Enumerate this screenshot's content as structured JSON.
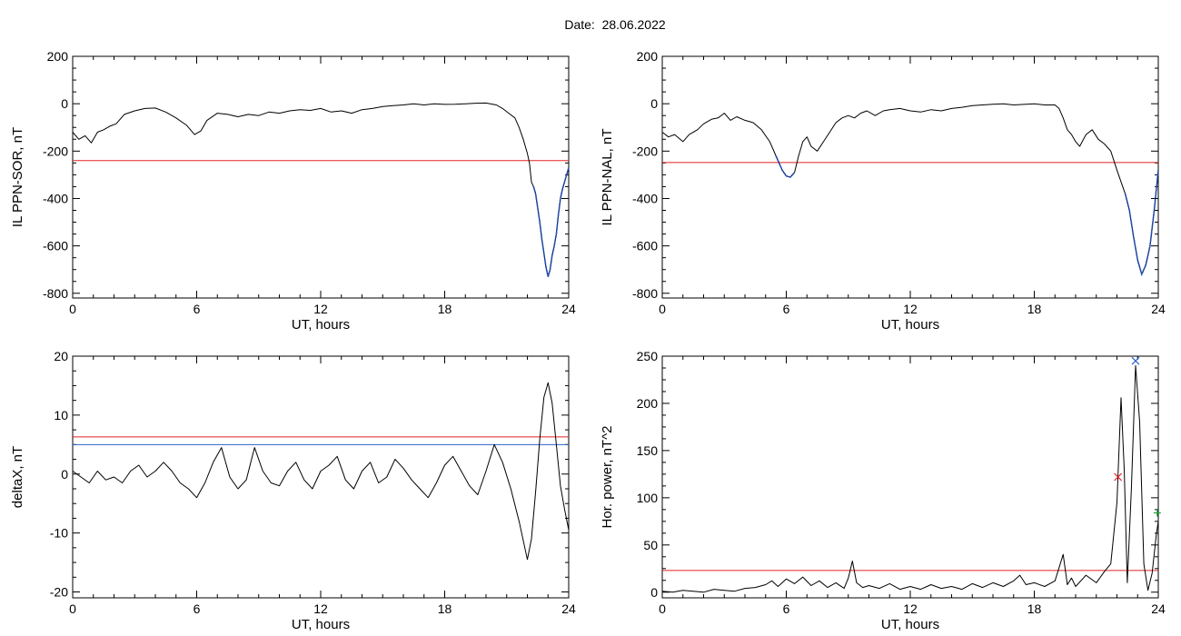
{
  "page": {
    "date_label": "Date:",
    "date_value": "28.06.2022"
  },
  "chart_data": [
    {
      "type": "line",
      "panel": "top-left",
      "ylabel": "IL PPN-SOR, nT",
      "xlabel": "UT, hours",
      "xlim": [
        0,
        24
      ],
      "ylim": [
        -820,
        200
      ],
      "xticks": [
        0,
        6,
        12,
        18,
        24
      ],
      "yticks": [
        200,
        0,
        -200,
        -400,
        -600,
        -800
      ],
      "threshold": {
        "value": -240,
        "color": "#e02020"
      },
      "line_color": "#000000",
      "highlight_color": "#1f4fbf",
      "highlight_ranges": [
        [
          22.3,
          24
        ]
      ],
      "series": [
        {
          "x": [
            0,
            0.3,
            0.6,
            0.9,
            1.2,
            1.5,
            1.8,
            2.1,
            2.5,
            3.0,
            3.5,
            4.0,
            4.5,
            5.0,
            5.5,
            5.9,
            6.2,
            6.5,
            7.0,
            7.5,
            8.0,
            8.5,
            9.0,
            9.5,
            10.0,
            10.5,
            11.0,
            11.5,
            12.0,
            12.5,
            13.0,
            13.5,
            14.0,
            14.5,
            15.0,
            15.5,
            16.0,
            16.5,
            17.0,
            17.5,
            18.0,
            18.5,
            19.0,
            19.5,
            20.0,
            20.5,
            20.8,
            21.1,
            21.4,
            21.6,
            21.8,
            22.0,
            22.1,
            22.2,
            22.3,
            22.4,
            22.5,
            22.6,
            22.7,
            22.8,
            22.9,
            23.0,
            23.1,
            23.2,
            23.3,
            23.4,
            23.5,
            23.6,
            23.7,
            23.8,
            23.9,
            24.0
          ],
          "y": [
            -120,
            -150,
            -135,
            -165,
            -120,
            -110,
            -95,
            -85,
            -45,
            -30,
            -20,
            -18,
            -35,
            -60,
            -90,
            -130,
            -115,
            -70,
            -40,
            -45,
            -55,
            -45,
            -50,
            -35,
            -40,
            -30,
            -25,
            -28,
            -20,
            -35,
            -30,
            -40,
            -25,
            -20,
            -12,
            -8,
            -5,
            0,
            -5,
            0,
            -3,
            -2,
            0,
            2,
            3,
            -5,
            -20,
            -40,
            -60,
            -100,
            -150,
            -210,
            -250,
            -330,
            -350,
            -380,
            -440,
            -500,
            -570,
            -630,
            -690,
            -730,
            -700,
            -640,
            -600,
            -550,
            -470,
            -400,
            -360,
            -330,
            -300,
            -270
          ]
        }
      ]
    },
    {
      "type": "line",
      "panel": "top-right",
      "ylabel": "IL PPN-NAL, nT",
      "xlabel": "UT, hours",
      "xlim": [
        0,
        24
      ],
      "ylim": [
        -820,
        200
      ],
      "xticks": [
        0,
        6,
        12,
        18,
        24
      ],
      "yticks": [
        200,
        0,
        -200,
        -400,
        -600,
        -800
      ],
      "threshold": {
        "value": -248,
        "color": "#e02020"
      },
      "line_color": "#000000",
      "highlight_color": "#1f4fbf",
      "highlight_ranges": [
        [
          5.5,
          6.4
        ],
        [
          22.3,
          24
        ]
      ],
      "series": [
        {
          "x": [
            0,
            0.3,
            0.6,
            1.0,
            1.3,
            1.7,
            2.0,
            2.4,
            2.7,
            3.0,
            3.3,
            3.6,
            4.0,
            4.4,
            4.8,
            5.2,
            5.5,
            5.8,
            6.0,
            6.2,
            6.4,
            6.6,
            6.8,
            7.0,
            7.2,
            7.5,
            7.8,
            8.1,
            8.4,
            8.7,
            9.0,
            9.3,
            9.6,
            9.9,
            10.3,
            10.7,
            11.0,
            11.5,
            12.0,
            12.5,
            13.0,
            13.5,
            14.0,
            14.5,
            15.0,
            15.5,
            16.0,
            16.5,
            17.0,
            17.5,
            18.0,
            18.5,
            19.0,
            19.2,
            19.4,
            19.6,
            19.8,
            20.0,
            20.2,
            20.5,
            20.8,
            21.1,
            21.4,
            21.7,
            22.0,
            22.2,
            22.4,
            22.6,
            22.8,
            23.0,
            23.2,
            23.4,
            23.6,
            23.8,
            24.0
          ],
          "y": [
            -120,
            -140,
            -130,
            -160,
            -130,
            -110,
            -85,
            -65,
            -60,
            -40,
            -70,
            -55,
            -70,
            -80,
            -110,
            -160,
            -220,
            -280,
            -305,
            -310,
            -290,
            -220,
            -160,
            -140,
            -180,
            -200,
            -160,
            -120,
            -80,
            -60,
            -50,
            -60,
            -40,
            -30,
            -50,
            -30,
            -25,
            -20,
            -30,
            -35,
            -25,
            -30,
            -20,
            -15,
            -8,
            -5,
            -2,
            0,
            -5,
            -3,
            0,
            -5,
            -5,
            -20,
            -60,
            -110,
            -130,
            -160,
            -180,
            -130,
            -110,
            -150,
            -170,
            -200,
            -280,
            -330,
            -380,
            -450,
            -560,
            -660,
            -720,
            -680,
            -600,
            -450,
            -280
          ]
        }
      ]
    },
    {
      "type": "line",
      "panel": "bottom-left",
      "ylabel": "deltaX, nT",
      "xlabel": "UT, hours",
      "xlim": [
        0,
        24
      ],
      "ylim": [
        -21,
        20
      ],
      "xticks": [
        0,
        6,
        12,
        18,
        24
      ],
      "yticks": [
        20,
        10,
        0,
        -10,
        -20
      ],
      "thresholds": [
        {
          "value": 6.3,
          "color": "#e02020"
        },
        {
          "value": 5.0,
          "color": "#2a62c9"
        }
      ],
      "line_color": "#000000",
      "series": [
        {
          "x": [
            0,
            0.4,
            0.8,
            1.2,
            1.6,
            2.0,
            2.4,
            2.8,
            3.2,
            3.6,
            4.0,
            4.4,
            4.8,
            5.2,
            5.6,
            6.0,
            6.4,
            6.8,
            7.2,
            7.6,
            8.0,
            8.4,
            8.8,
            9.2,
            9.6,
            10.0,
            10.4,
            10.8,
            11.2,
            11.6,
            12.0,
            12.4,
            12.8,
            13.2,
            13.6,
            14.0,
            14.4,
            14.8,
            15.2,
            15.6,
            16.0,
            16.4,
            16.8,
            17.2,
            17.6,
            18.0,
            18.4,
            18.8,
            19.2,
            19.6,
            20.0,
            20.4,
            20.8,
            21.2,
            21.6,
            22.0,
            22.2,
            22.4,
            22.6,
            22.8,
            23.0,
            23.2,
            23.4,
            23.6,
            23.8,
            24.0
          ],
          "y": [
            0.5,
            -0.5,
            -1.5,
            0.5,
            -1,
            -0.5,
            -1.5,
            0.5,
            1.5,
            -0.5,
            0.5,
            2.0,
            0.5,
            -1.5,
            -2.5,
            -4.0,
            -1.5,
            2.0,
            4.5,
            -0.5,
            -2.5,
            -1.0,
            4.5,
            0.5,
            -1.5,
            -2.0,
            0.5,
            2.0,
            -1.0,
            -2.5,
            0.5,
            1.5,
            3.0,
            -1.0,
            -2.5,
            0.5,
            2.0,
            -1.5,
            -0.5,
            2.5,
            1.0,
            -1.0,
            -2.5,
            -4.0,
            -1.5,
            1.5,
            3.0,
            0.5,
            -2.0,
            -3.5,
            0.5,
            5.0,
            2.0,
            -2.5,
            -8.0,
            -14.5,
            -11,
            -3,
            6,
            13,
            15.5,
            12,
            5,
            -2,
            -6,
            -9.5
          ]
        }
      ]
    },
    {
      "type": "line",
      "panel": "bottom-right",
      "ylabel": "Hor. power, nT^2",
      "xlabel": "UT, hours",
      "xlim": [
        0,
        24
      ],
      "ylim": [
        -6,
        250
      ],
      "xticks": [
        0,
        6,
        12,
        18,
        24
      ],
      "yticks": [
        250,
        200,
        150,
        100,
        50,
        0
      ],
      "threshold": {
        "value": 23,
        "color": "#e02020"
      },
      "line_color": "#000000",
      "markers": [
        {
          "x": 22.05,
          "y": 122,
          "color": "#e02020",
          "symbol": "x"
        },
        {
          "x": 22.9,
          "y": 245,
          "color": "#2a62c9",
          "symbol": "x"
        },
        {
          "x": 23.95,
          "y": 84,
          "color": "#20a040",
          "symbol": "+"
        }
      ],
      "series": [
        {
          "x": [
            0,
            0.5,
            1.0,
            1.5,
            2.0,
            2.5,
            3.0,
            3.5,
            4.0,
            4.5,
            5.0,
            5.3,
            5.6,
            6.0,
            6.4,
            6.8,
            7.2,
            7.6,
            8.0,
            8.4,
            8.8,
            9.0,
            9.2,
            9.4,
            9.7,
            10.0,
            10.5,
            11.0,
            11.5,
            12.0,
            12.5,
            13.0,
            13.5,
            14.0,
            14.5,
            15.0,
            15.5,
            16.0,
            16.5,
            17.0,
            17.3,
            17.6,
            18.0,
            18.5,
            19.0,
            19.4,
            19.6,
            19.8,
            20.0,
            20.5,
            21.0,
            21.4,
            21.7,
            22.0,
            22.2,
            22.35,
            22.5,
            22.7,
            22.9,
            23.1,
            23.3,
            23.5,
            23.7,
            23.9,
            24.0
          ],
          "y": [
            1,
            0,
            2,
            1,
            0,
            3,
            2,
            1,
            4,
            5,
            8,
            12,
            6,
            14,
            9,
            16,
            7,
            12,
            5,
            10,
            4,
            15,
            33,
            10,
            5,
            7,
            4,
            9,
            3,
            6,
            3,
            8,
            4,
            6,
            3,
            9,
            5,
            10,
            6,
            12,
            18,
            8,
            10,
            6,
            12,
            40,
            8,
            15,
            6,
            18,
            10,
            22,
            30,
            95,
            206,
            130,
            10,
            110,
            240,
            180,
            30,
            2,
            20,
            60,
            75
          ]
        }
      ]
    }
  ]
}
